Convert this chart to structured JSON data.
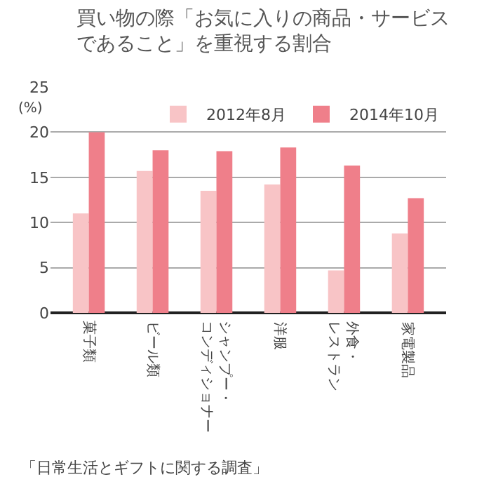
{
  "chart_data": {
    "type": "bar",
    "title": "買い物の際「お気に入りの商品・サービスであること」を重視する割合",
    "ylabel": "(%)",
    "categories": [
      "菓子類",
      "ビール類",
      "シャンプー・コンディショナー",
      "洋服",
      "外食・レストラン",
      "家電製品"
    ],
    "series": [
      {
        "name": "2012年8月",
        "color": "#f8c4c6",
        "values": [
          11.0,
          15.7,
          13.5,
          14.2,
          4.7,
          8.8
        ]
      },
      {
        "name": "2014年10月",
        "color": "#ef7f8a",
        "values": [
          20.0,
          18.0,
          17.9,
          18.3,
          16.3,
          12.7
        ]
      }
    ],
    "ylim": [
      0,
      25
    ],
    "yticks": [
      0,
      5,
      10,
      15,
      20,
      25
    ],
    "grid": "y",
    "legend": "top right",
    "annotations": [
      "「日常生活とギフトに関する調査」"
    ]
  }
}
